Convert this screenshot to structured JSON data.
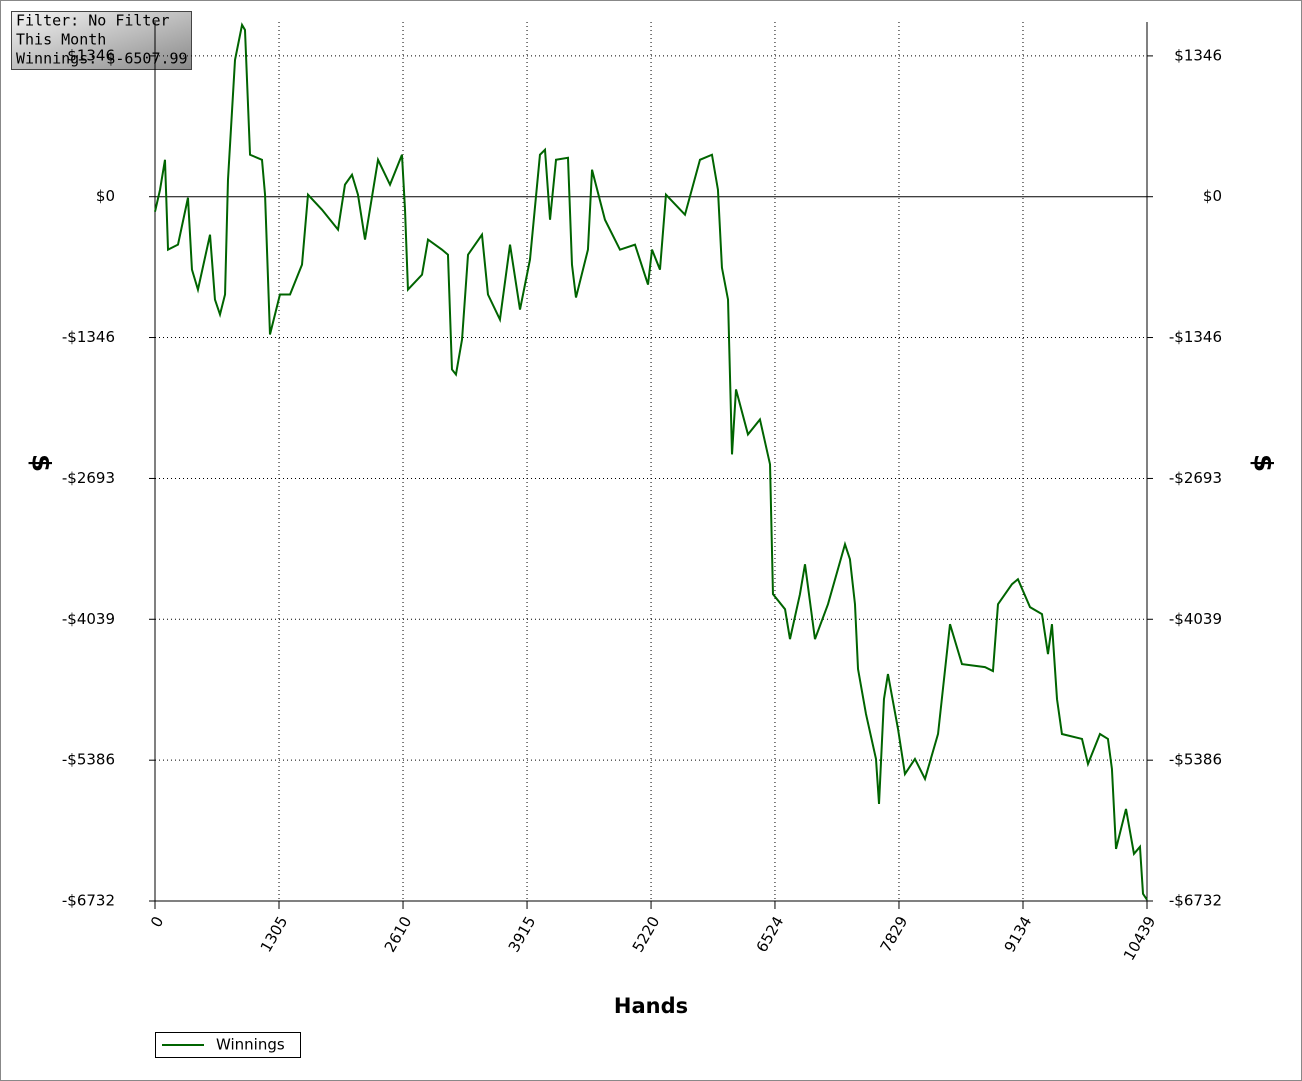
{
  "chart_data": {
    "type": "line",
    "info": [
      "Filter: No Filter",
      "This Month",
      "Winnings: $-6507.99"
    ],
    "x_label": "Hands",
    "y_label": "$",
    "xlim": [
      0,
      10439
    ],
    "xticks": [
      0,
      1305,
      2610,
      3915,
      5220,
      6524,
      7829,
      9134,
      10439
    ],
    "ylim": [
      -6732,
      1670
    ],
    "yticks": [
      {
        "value": 1346,
        "label": "$1346"
      },
      {
        "value": 0,
        "label": "$0"
      },
      {
        "value": -1346,
        "label": "-$1346"
      },
      {
        "value": -2693,
        "label": "-$2693"
      },
      {
        "value": -4039,
        "label": "-$4039"
      },
      {
        "value": -5386,
        "label": "-$5386"
      },
      {
        "value": -6732,
        "label": "-$6732"
      }
    ],
    "grid": true,
    "series": [
      {
        "name": "Winnings",
        "color": "#006400",
        "x": [
          0,
          53,
          105,
          137,
          242,
          347,
          389,
          452,
          579,
          631,
          684,
          737,
          768,
          842,
          916,
          947,
          1000,
          1126,
          1158,
          1210,
          1315,
          1421,
          1547,
          1610,
          1757,
          1926,
          1999,
          2073,
          2136,
          2210,
          2347,
          2473,
          2599,
          2631,
          2662,
          2810,
          2873,
          3020,
          3083,
          3125,
          3167,
          3231,
          3294,
          3441,
          3504,
          3630,
          3736,
          3841,
          3946,
          4051,
          4104,
          4157,
          4220,
          4346,
          4388,
          4430,
          4556,
          4599,
          4735,
          4893,
          5051,
          5188,
          5230,
          5314,
          5377,
          5577,
          5735,
          5861,
          5924,
          5966,
          6030,
          6072,
          6114,
          6240,
          6366,
          6472,
          6503,
          6630,
          6682,
          6787,
          6840,
          6945,
          7082,
          7261,
          7313,
          7366,
          7398,
          7482,
          7587,
          7619,
          7671,
          7713,
          7819,
          7892,
          7997,
          8103,
          8240,
          8366,
          8492,
          8734,
          8818,
          8871,
          9018,
          9081,
          9208,
          9334,
          9397,
          9439,
          9492,
          9544,
          9755,
          9818,
          9944,
          10028,
          10070,
          10113,
          10218,
          10302,
          10365,
          10397,
          10439
        ],
        "values": [
          -143,
          67,
          353,
          -506,
          -458,
          -10,
          -697,
          -888,
          -363,
          -983,
          -1126,
          -935,
          162,
          1308,
          1642,
          1594,
          401,
          353,
          19,
          -1317,
          -935,
          -935,
          -649,
          19,
          -124,
          -315,
          115,
          210,
          19,
          -410,
          353,
          115,
          401,
          -124,
          -888,
          -745,
          -410,
          -506,
          -554,
          -1651,
          -1699,
          -1365,
          -554,
          -363,
          -935,
          -1174,
          -458,
          -1079,
          -601,
          401,
          449,
          -220,
          353,
          372,
          -649,
          -964,
          -506,
          258,
          -220,
          -506,
          -458,
          -840,
          -506,
          -697,
          19,
          -172,
          353,
          401,
          67,
          -678,
          -983,
          -2463,
          -1842,
          -2272,
          -2129,
          -2558,
          -3799,
          -3943,
          -4229,
          -3799,
          -3513,
          -4229,
          -3895,
          -3322,
          -3465,
          -3895,
          -4515,
          -4945,
          -5374,
          -5804,
          -4802,
          -4563,
          -5088,
          -5518,
          -5374,
          -5565,
          -5135,
          -4086,
          -4468,
          -4496,
          -4534,
          -3895,
          -3704,
          -3656,
          -3923,
          -3990,
          -4372,
          -4086,
          -4802,
          -5136,
          -5183,
          -5422,
          -5136,
          -5183,
          -5470,
          -6234,
          -5852,
          -6281,
          -6214,
          -6663,
          -6720
        ]
      }
    ]
  }
}
